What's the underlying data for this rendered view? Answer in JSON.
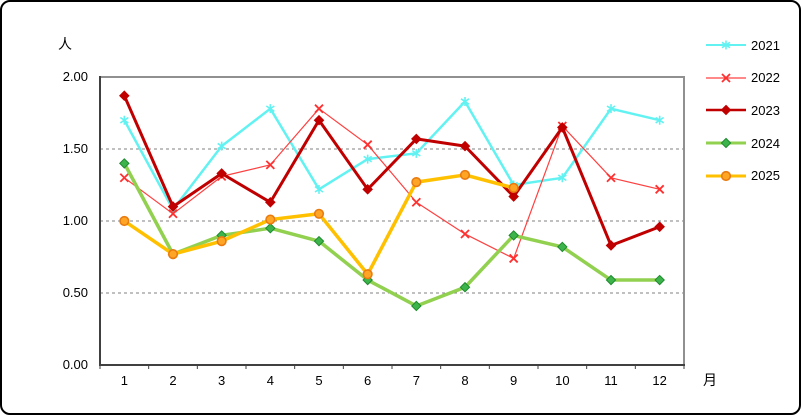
{
  "chart_data": {
    "type": "line",
    "title": "",
    "ylabel": "人",
    "xlabel": "月",
    "categories": [
      "1",
      "2",
      "3",
      "4",
      "5",
      "6",
      "7",
      "8",
      "9",
      "10",
      "11",
      "12"
    ],
    "ylim": [
      0.0,
      2.0
    ],
    "ytick_values": [
      0.0,
      0.5,
      1.0,
      1.5,
      2.0
    ],
    "ytick_labels": [
      "0.00",
      "0.50",
      "1.00",
      "1.50",
      "2.00"
    ],
    "grid": "horizontal dashed at 0.50 / 1.00 / 1.50",
    "legend_position": "right",
    "colors": {
      "axis": "#404040",
      "plot_border": "#909090",
      "gridline": "#808080"
    },
    "series": [
      {
        "name": "2021",
        "color": "#63F2F2",
        "marker": "star",
        "marker_fill": "#63F2F2",
        "marker_border": "#63F2F2",
        "line_width": 2.5,
        "values": [
          1.7,
          1.08,
          1.52,
          1.78,
          1.22,
          1.43,
          1.47,
          1.83,
          1.25,
          1.3,
          1.78,
          1.7
        ]
      },
      {
        "name": "2022",
        "color": "#FF4040",
        "marker": "x",
        "marker_fill": "#FF3030",
        "marker_border": "#FF3030",
        "line_width": 1.2,
        "values": [
          1.3,
          1.05,
          1.31,
          1.39,
          1.78,
          1.53,
          1.13,
          0.91,
          0.74,
          1.66,
          1.3,
          1.22
        ]
      },
      {
        "name": "2023",
        "color": "#C00000",
        "marker": "diamond",
        "marker_fill": "#C00000",
        "marker_border": "#C00000",
        "line_width": 3,
        "values": [
          1.87,
          1.1,
          1.33,
          1.13,
          1.7,
          1.22,
          1.57,
          1.52,
          1.17,
          1.65,
          0.83,
          0.96
        ]
      },
      {
        "name": "2024",
        "color": "#92D050",
        "marker": "diamond",
        "marker_fill": "#3CB44B",
        "marker_border": "#1E8A2E",
        "line_width": 3.5,
        "values": [
          1.4,
          0.77,
          0.9,
          0.95,
          0.86,
          0.59,
          0.41,
          0.54,
          0.9,
          0.82,
          0.59,
          0.59
        ]
      },
      {
        "name": "2025",
        "color": "#FFC000",
        "marker": "circle",
        "marker_fill": "#FFA526",
        "marker_border": "#E97B10",
        "line_width": 3.5,
        "values": [
          1.0,
          0.77,
          0.86,
          1.01,
          1.05,
          0.63,
          1.27,
          1.32,
          1.23,
          null,
          null,
          null
        ]
      }
    ]
  }
}
